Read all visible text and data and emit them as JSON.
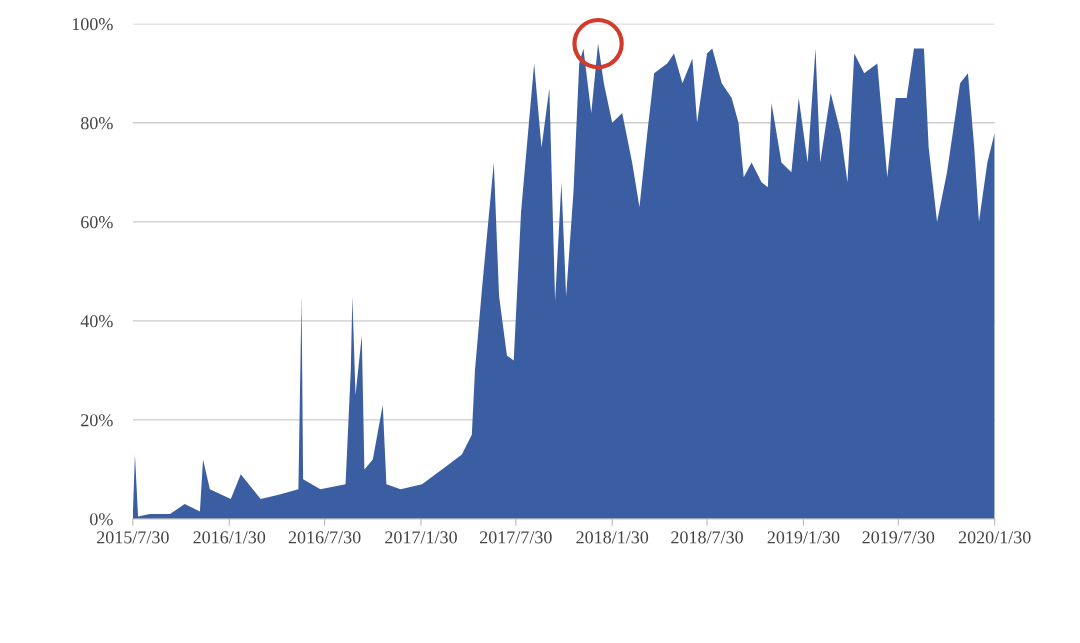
{
  "chart_data": {
    "type": "area",
    "color": "#3b5ea3",
    "x": [
      "2015-07-30",
      "2015-08-03",
      "2015-08-09",
      "2015-08-31",
      "2015-10-09",
      "2015-11-06",
      "2015-12-05",
      "2015-12-11",
      "2015-12-24",
      "2016-02-02",
      "2016-02-21",
      "2016-03-30",
      "2016-05-07",
      "2016-06-10",
      "2016-06-16",
      "2016-06-19",
      "2016-07-22",
      "2016-09-08",
      "2016-09-18",
      "2016-09-21",
      "2016-09-27",
      "2016-10-09",
      "2016-10-14",
      "2016-10-30",
      "2016-11-18",
      "2016-11-25",
      "2016-12-22",
      "2017-02-01",
      "2017-03-11",
      "2017-04-18",
      "2017-05-07",
      "2017-05-13",
      "2017-05-26",
      "2017-06-18",
      "2017-06-28",
      "2017-07-13",
      "2017-07-26",
      "2017-08-09",
      "2017-09-03",
      "2017-09-17",
      "2017-10-02",
      "2017-10-13",
      "2017-10-25",
      "2017-11-03",
      "2017-11-17",
      "2017-11-28",
      "2017-12-06",
      "2017-12-21",
      "2018-01-03",
      "2018-01-14",
      "2018-01-30",
      "2018-02-18",
      "2018-03-09",
      "2018-03-23",
      "2018-04-07",
      "2018-04-20",
      "2018-05-15",
      "2018-05-28",
      "2018-06-13",
      "2018-07-02",
      "2018-07-11",
      "2018-07-30",
      "2018-08-09",
      "2018-08-27",
      "2018-09-15",
      "2018-09-28",
      "2018-10-08",
      "2018-10-23",
      "2018-11-11",
      "2018-11-23",
      "2018-11-30",
      "2018-12-19",
      "2019-01-07",
      "2019-01-21",
      "2019-02-07",
      "2019-02-22",
      "2019-03-03",
      "2019-03-23",
      "2019-04-11",
      "2019-04-24",
      "2019-05-07",
      "2019-05-26",
      "2019-06-20",
      "2019-07-09",
      "2019-07-25",
      "2019-08-15",
      "2019-08-29",
      "2019-09-17",
      "2019-09-26",
      "2019-10-12",
      "2019-10-31",
      "2019-11-25",
      "2019-12-10",
      "2019-12-22",
      "2019-12-31",
      "2020-01-16",
      "2020-01-30"
    ],
    "values": [
      1,
      13,
      0.5,
      1,
      1,
      3,
      1.5,
      12,
      6,
      4,
      9,
      4,
      5,
      6,
      45,
      8,
      6,
      7,
      30,
      45,
      25,
      37,
      10,
      12,
      23,
      7,
      6,
      7,
      10,
      13,
      17,
      30,
      46,
      72,
      45,
      33,
      32,
      62,
      92,
      75,
      87,
      44,
      68,
      45,
      66,
      92,
      95,
      82,
      96,
      88,
      80,
      82,
      72,
      63,
      78,
      90,
      92,
      94,
      88,
      93,
      80,
      94,
      95,
      88,
      85,
      80,
      69,
      72,
      68,
      67,
      84,
      72,
      70,
      85,
      72,
      95,
      72,
      86,
      78,
      68,
      94,
      90,
      92,
      69,
      85,
      85,
      95,
      95,
      75,
      60,
      70,
      88,
      90,
      75,
      60,
      72,
      78
    ],
    "xlim": [
      "2015-07-30",
      "2020-01-30"
    ],
    "xticks": [
      {
        "value": "2015-07-30",
        "label": "2015/7/30"
      },
      {
        "value": "2016-01-30",
        "label": "2016/1/30"
      },
      {
        "value": "2016-07-30",
        "label": "2016/7/30"
      },
      {
        "value": "2017-01-30",
        "label": "2017/1/30"
      },
      {
        "value": "2017-07-30",
        "label": "2017/7/30"
      },
      {
        "value": "2018-01-30",
        "label": "2018/1/30"
      },
      {
        "value": "2018-07-30",
        "label": "2018/7/30"
      },
      {
        "value": "2019-01-30",
        "label": "2019/1/30"
      },
      {
        "value": "2019-07-30",
        "label": "2019/7/30"
      },
      {
        "value": "2020-01-30",
        "label": "2020/1/30"
      }
    ],
    "ylim": [
      0,
      100
    ],
    "yticks": [
      {
        "value": 0,
        "label": "0%"
      },
      {
        "value": 20,
        "label": "20%"
      },
      {
        "value": 40,
        "label": "40%"
      },
      {
        "value": 60,
        "label": "60%"
      },
      {
        "value": 80,
        "label": "80%"
      },
      {
        "value": 100,
        "label": "100%"
      }
    ],
    "grid": "y"
  }
}
